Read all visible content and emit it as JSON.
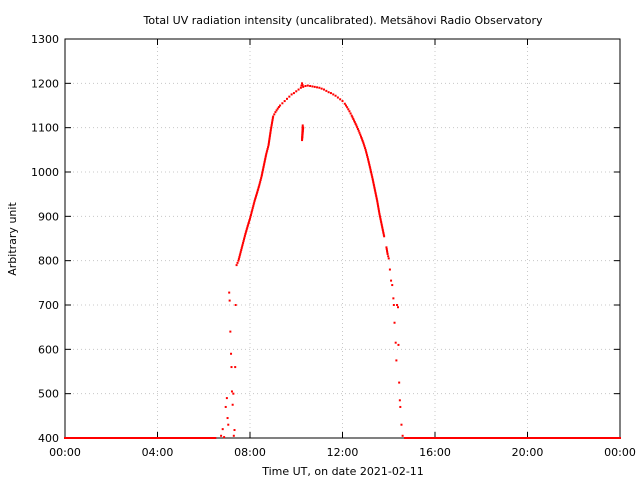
{
  "chart_data": {
    "type": "scatter",
    "title": "Total UV radiation intensity (uncalibrated). Metsähovi Radio Observatory",
    "xlabel": "Time UT, on date 2021-02-11",
    "ylabel": "Arbitrary unit",
    "xlim": [
      0,
      24
    ],
    "ylim": [
      400,
      1300
    ],
    "x_ticks": [
      {
        "value": 0,
        "label": "00:00"
      },
      {
        "value": 4,
        "label": "04:00"
      },
      {
        "value": 8,
        "label": "08:00"
      },
      {
        "value": 12,
        "label": "12:00"
      },
      {
        "value": 16,
        "label": "16:00"
      },
      {
        "value": 20,
        "label": "20:00"
      },
      {
        "value": 24,
        "label": "00:00"
      }
    ],
    "y_ticks": [
      400,
      500,
      600,
      700,
      800,
      900,
      1000,
      1100,
      1200,
      1300
    ],
    "grid": true,
    "marker_color": "#ff0000",
    "series": [
      {
        "name": "",
        "points": [
          [
            0.0,
            400
          ],
          [
            0.5,
            400
          ],
          [
            1.0,
            400
          ],
          [
            1.5,
            400
          ],
          [
            2.0,
            400
          ],
          [
            2.5,
            400
          ],
          [
            3.0,
            400
          ],
          [
            3.5,
            400
          ],
          [
            4.0,
            400
          ],
          [
            4.5,
            400
          ],
          [
            5.0,
            400
          ],
          [
            5.5,
            400
          ],
          [
            6.0,
            400
          ],
          [
            6.5,
            400
          ],
          [
            6.75,
            405
          ],
          [
            6.82,
            420
          ],
          [
            6.88,
            402
          ],
          [
            6.95,
            470
          ],
          [
            7.0,
            490
          ],
          [
            7.03,
            445
          ],
          [
            7.06,
            430
          ],
          [
            7.1,
            728
          ],
          [
            7.12,
            710
          ],
          [
            7.15,
            640
          ],
          [
            7.18,
            590
          ],
          [
            7.2,
            560
          ],
          [
            7.22,
            505
          ],
          [
            7.25,
            475
          ],
          [
            7.28,
            500
          ],
          [
            7.3,
            405
          ],
          [
            7.33,
            418
          ],
          [
            7.36,
            560
          ],
          [
            7.38,
            700
          ],
          [
            7.42,
            790
          ],
          [
            7.5,
            800
          ],
          [
            7.6,
            820
          ],
          [
            7.7,
            840
          ],
          [
            7.8,
            860
          ],
          [
            7.9,
            878
          ],
          [
            8.0,
            895
          ],
          [
            8.1,
            915
          ],
          [
            8.2,
            935
          ],
          [
            8.3,
            952
          ],
          [
            8.4,
            970
          ],
          [
            8.5,
            990
          ],
          [
            8.6,
            1015
          ],
          [
            8.7,
            1040
          ],
          [
            8.8,
            1060
          ],
          [
            8.9,
            1095
          ],
          [
            9.0,
            1125
          ],
          [
            9.1,
            1135
          ],
          [
            9.2,
            1143
          ],
          [
            9.3,
            1150
          ],
          [
            9.4,
            1155
          ],
          [
            9.5,
            1160
          ],
          [
            9.6,
            1165
          ],
          [
            9.7,
            1170
          ],
          [
            9.8,
            1175
          ],
          [
            9.9,
            1178
          ],
          [
            10.0,
            1182
          ],
          [
            10.1,
            1186
          ],
          [
            10.2,
            1190
          ],
          [
            10.25,
            1200
          ],
          [
            10.3,
            1192
          ],
          [
            10.4,
            1194
          ],
          [
            10.5,
            1195
          ],
          [
            10.6,
            1194
          ],
          [
            10.7,
            1193
          ],
          [
            10.8,
            1192
          ],
          [
            10.9,
            1191
          ],
          [
            11.0,
            1190
          ],
          [
            11.1,
            1188
          ],
          [
            11.2,
            1186
          ],
          [
            11.3,
            1183
          ],
          [
            11.4,
            1180
          ],
          [
            11.5,
            1178
          ],
          [
            11.6,
            1175
          ],
          [
            11.7,
            1172
          ],
          [
            11.8,
            1168
          ],
          [
            11.9,
            1164
          ],
          [
            12.0,
            1160
          ],
          [
            12.1,
            1154
          ],
          [
            12.2,
            1146
          ],
          [
            12.3,
            1137
          ],
          [
            12.4,
            1127
          ],
          [
            12.5,
            1116
          ],
          [
            12.6,
            1105
          ],
          [
            12.7,
            1093
          ],
          [
            12.8,
            1080
          ],
          [
            12.9,
            1066
          ],
          [
            13.0,
            1050
          ],
          [
            13.1,
            1030
          ],
          [
            13.2,
            1008
          ],
          [
            13.3,
            985
          ],
          [
            13.4,
            960
          ],
          [
            13.5,
            935
          ],
          [
            13.6,
            905
          ],
          [
            13.7,
            880
          ],
          [
            13.8,
            855
          ],
          [
            10.28,
            1105
          ],
          [
            10.25,
            1072
          ],
          [
            10.3,
            1100
          ],
          [
            13.9,
            830
          ],
          [
            13.95,
            815
          ],
          [
            14.0,
            805
          ],
          [
            14.05,
            780
          ],
          [
            14.1,
            755
          ],
          [
            14.15,
            745
          ],
          [
            14.2,
            715
          ],
          [
            14.22,
            700
          ],
          [
            14.25,
            660
          ],
          [
            14.3,
            615
          ],
          [
            14.33,
            575
          ],
          [
            14.36,
            700
          ],
          [
            14.4,
            695
          ],
          [
            14.42,
            610
          ],
          [
            14.45,
            525
          ],
          [
            14.48,
            485
          ],
          [
            14.5,
            470
          ],
          [
            14.55,
            430
          ],
          [
            14.6,
            405
          ],
          [
            14.7,
            400
          ],
          [
            15.0,
            400
          ],
          [
            15.5,
            400
          ],
          [
            16.0,
            400
          ],
          [
            16.5,
            400
          ],
          [
            17.0,
            400
          ],
          [
            17.5,
            400
          ],
          [
            18.0,
            400
          ],
          [
            18.5,
            400
          ],
          [
            19.0,
            400
          ],
          [
            19.5,
            400
          ],
          [
            20.0,
            400
          ],
          [
            20.5,
            400
          ],
          [
            21.0,
            400
          ],
          [
            21.5,
            400
          ],
          [
            22.0,
            400
          ],
          [
            22.5,
            400
          ],
          [
            23.0,
            400
          ],
          [
            23.5,
            400
          ],
          [
            24.0,
            400
          ]
        ]
      }
    ]
  }
}
